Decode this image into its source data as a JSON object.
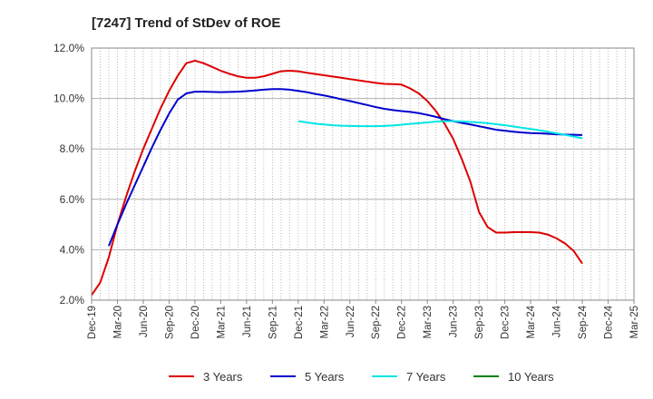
{
  "chart_data": {
    "type": "line",
    "title": "[7247]  Trend of StDev of ROE",
    "xlabel": "",
    "ylabel": "",
    "ylim": [
      2.0,
      12.0
    ],
    "y_ticks": [
      "2.0%",
      "4.0%",
      "6.0%",
      "8.0%",
      "10.0%",
      "12.0%"
    ],
    "y_tick_values": [
      2,
      4,
      6,
      8,
      10,
      12
    ],
    "x_range": [
      "Dec-19",
      "Mar-25"
    ],
    "x_ticks": [
      "Dec-19",
      "Mar-20",
      "Jun-20",
      "Sep-20",
      "Dec-20",
      "Mar-21",
      "Jun-21",
      "Sep-21",
      "Dec-21",
      "Mar-22",
      "Jun-22",
      "Sep-22",
      "Dec-22",
      "Mar-23",
      "Jun-23",
      "Sep-23",
      "Dec-23",
      "Mar-24",
      "Jun-24",
      "Sep-24",
      "Dec-24",
      "Mar-25"
    ],
    "grid": true,
    "legend_position": "bottom",
    "series": [
      {
        "name": "3 Years",
        "color": "#dd0000",
        "points": [
          [
            "Dec-19",
            2.2
          ],
          [
            "Jan-20",
            2.7
          ],
          [
            "Feb-20",
            3.7
          ],
          [
            "Mar-20",
            5.0
          ],
          [
            "Apr-20",
            6.1
          ],
          [
            "May-20",
            7.1
          ],
          [
            "Jun-20",
            8.0
          ],
          [
            "Jul-20",
            8.8
          ],
          [
            "Aug-20",
            9.6
          ],
          [
            "Sep-20",
            10.3
          ],
          [
            "Oct-20",
            10.9
          ],
          [
            "Nov-20",
            11.4
          ],
          [
            "Dec-20",
            11.5
          ],
          [
            "Jan-21",
            11.4
          ],
          [
            "Feb-21",
            11.25
          ],
          [
            "Mar-21",
            11.1
          ],
          [
            "Apr-21",
            10.98
          ],
          [
            "May-21",
            10.88
          ],
          [
            "Jun-21",
            10.82
          ],
          [
            "Jul-21",
            10.82
          ],
          [
            "Aug-21",
            10.88
          ],
          [
            "Sep-21",
            10.98
          ],
          [
            "Oct-21",
            11.08
          ],
          [
            "Nov-21",
            11.1
          ],
          [
            "Dec-21",
            11.08
          ],
          [
            "Jan-22",
            11.02
          ],
          [
            "Feb-22",
            10.97
          ],
          [
            "Mar-22",
            10.92
          ],
          [
            "Apr-22",
            10.87
          ],
          [
            "May-22",
            10.82
          ],
          [
            "Jun-22",
            10.77
          ],
          [
            "Jul-22",
            10.72
          ],
          [
            "Aug-22",
            10.67
          ],
          [
            "Sep-22",
            10.62
          ],
          [
            "Oct-22",
            10.58
          ],
          [
            "Nov-22",
            10.57
          ],
          [
            "Dec-22",
            10.55
          ],
          [
            "Jan-23",
            10.4
          ],
          [
            "Feb-23",
            10.2
          ],
          [
            "Mar-23",
            9.9
          ],
          [
            "Apr-23",
            9.5
          ],
          [
            "May-23",
            9.0
          ],
          [
            "Jun-23",
            8.4
          ],
          [
            "Jul-23",
            7.6
          ],
          [
            "Aug-23",
            6.7
          ],
          [
            "Sep-23",
            5.5
          ],
          [
            "Oct-23",
            4.9
          ],
          [
            "Nov-23",
            4.68
          ],
          [
            "Dec-23",
            4.68
          ],
          [
            "Jan-24",
            4.7
          ],
          [
            "Feb-24",
            4.7
          ],
          [
            "Mar-24",
            4.7
          ],
          [
            "Apr-24",
            4.68
          ],
          [
            "May-24",
            4.6
          ],
          [
            "Jun-24",
            4.45
          ],
          [
            "Jul-24",
            4.25
          ],
          [
            "Aug-24",
            3.95
          ],
          [
            "Sep-24",
            3.45
          ]
        ]
      },
      {
        "name": "5 Years",
        "color": "#0000cc",
        "points": [
          [
            "Feb-20",
            4.15
          ],
          [
            "Mar-20",
            5.0
          ],
          [
            "Apr-20",
            5.8
          ],
          [
            "May-20",
            6.55
          ],
          [
            "Jun-20",
            7.3
          ],
          [
            "Jul-20",
            8.05
          ],
          [
            "Aug-20",
            8.75
          ],
          [
            "Sep-20",
            9.4
          ],
          [
            "Oct-20",
            9.95
          ],
          [
            "Nov-20",
            10.2
          ],
          [
            "Dec-20",
            10.27
          ],
          [
            "Jan-21",
            10.27
          ],
          [
            "Feb-21",
            10.26
          ],
          [
            "Mar-21",
            10.25
          ],
          [
            "Apr-21",
            10.26
          ],
          [
            "May-21",
            10.27
          ],
          [
            "Jun-21",
            10.29
          ],
          [
            "Jul-21",
            10.32
          ],
          [
            "Aug-21",
            10.35
          ],
          [
            "Sep-21",
            10.37
          ],
          [
            "Oct-21",
            10.37
          ],
          [
            "Nov-21",
            10.35
          ],
          [
            "Dec-21",
            10.3
          ],
          [
            "Jan-22",
            10.25
          ],
          [
            "Feb-22",
            10.18
          ],
          [
            "Mar-22",
            10.12
          ],
          [
            "Apr-22",
            10.05
          ],
          [
            "May-22",
            9.97
          ],
          [
            "Jun-22",
            9.9
          ],
          [
            "Jul-22",
            9.82
          ],
          [
            "Aug-22",
            9.74
          ],
          [
            "Sep-22",
            9.66
          ],
          [
            "Oct-22",
            9.59
          ],
          [
            "Nov-22",
            9.54
          ],
          [
            "Dec-22",
            9.5
          ],
          [
            "Jan-23",
            9.47
          ],
          [
            "Feb-23",
            9.42
          ],
          [
            "Mar-23",
            9.35
          ],
          [
            "Apr-23",
            9.27
          ],
          [
            "May-23",
            9.18
          ],
          [
            "Jun-23",
            9.1
          ],
          [
            "Jul-23",
            9.03
          ],
          [
            "Aug-23",
            8.97
          ],
          [
            "Sep-23",
            8.9
          ],
          [
            "Oct-23",
            8.83
          ],
          [
            "Nov-23",
            8.76
          ],
          [
            "Dec-23",
            8.72
          ],
          [
            "Jan-24",
            8.68
          ],
          [
            "Feb-24",
            8.65
          ],
          [
            "Mar-24",
            8.63
          ],
          [
            "Apr-24",
            8.62
          ],
          [
            "May-24",
            8.6
          ],
          [
            "Jun-24",
            8.58
          ],
          [
            "Jul-24",
            8.57
          ],
          [
            "Aug-24",
            8.56
          ],
          [
            "Sep-24",
            8.55
          ]
        ]
      },
      {
        "name": "7 Years",
        "color": "#00e5e5",
        "points": [
          [
            "Dec-21",
            9.1
          ],
          [
            "Jan-22",
            9.05
          ],
          [
            "Feb-22",
            9.0
          ],
          [
            "Mar-22",
            8.97
          ],
          [
            "Apr-22",
            8.94
          ],
          [
            "May-22",
            8.92
          ],
          [
            "Jun-22",
            8.91
          ],
          [
            "Jul-22",
            8.9
          ],
          [
            "Aug-22",
            8.9
          ],
          [
            "Sep-22",
            8.9
          ],
          [
            "Oct-22",
            8.91
          ],
          [
            "Nov-22",
            8.93
          ],
          [
            "Dec-22",
            8.96
          ],
          [
            "Jan-23",
            8.99
          ],
          [
            "Feb-23",
            9.02
          ],
          [
            "Mar-23",
            9.05
          ],
          [
            "Apr-23",
            9.08
          ],
          [
            "May-23",
            9.1
          ],
          [
            "Jun-23",
            9.1
          ],
          [
            "Jul-23",
            9.09
          ],
          [
            "Aug-23",
            9.07
          ],
          [
            "Sep-23",
            9.05
          ],
          [
            "Oct-23",
            9.02
          ],
          [
            "Nov-23",
            8.98
          ],
          [
            "Dec-23",
            8.94
          ],
          [
            "Jan-24",
            8.89
          ],
          [
            "Feb-24",
            8.84
          ],
          [
            "Mar-24",
            8.79
          ],
          [
            "Apr-24",
            8.74
          ],
          [
            "May-24",
            8.68
          ],
          [
            "Jun-24",
            8.62
          ],
          [
            "Jul-24",
            8.56
          ],
          [
            "Aug-24",
            8.49
          ],
          [
            "Sep-24",
            8.42
          ]
        ]
      },
      {
        "name": "10 Years",
        "color": "#008000",
        "points": []
      }
    ]
  }
}
